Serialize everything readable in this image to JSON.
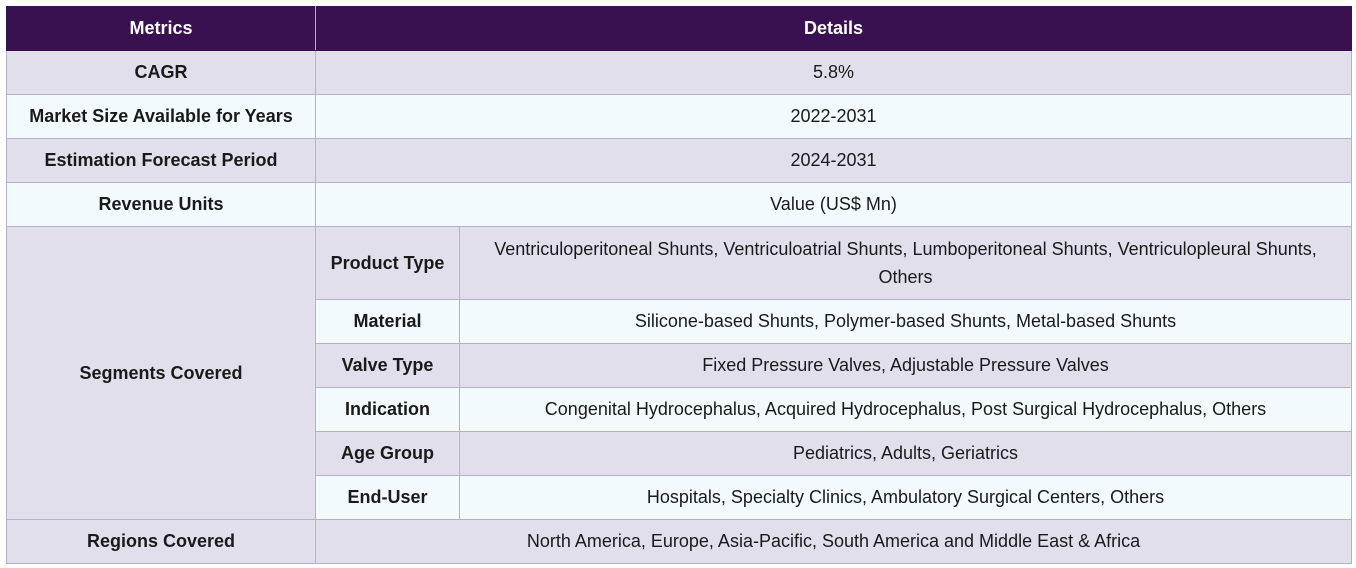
{
  "table": {
    "headers": {
      "metrics": "Metrics",
      "details": "Details"
    },
    "rows": [
      {
        "metric": "CAGR",
        "value": "5.8%"
      },
      {
        "metric": "Market Size Available for Years",
        "value": "2022-2031"
      },
      {
        "metric": "Estimation Forecast Period",
        "value": "2024-2031"
      },
      {
        "metric": "Revenue Units",
        "value": "Value (US$ Mn)"
      }
    ],
    "segments": {
      "label": "Segments Covered",
      "items": [
        {
          "name": "Product Type",
          "value": "Ventriculoperitoneal Shunts, Ventriculoatrial Shunts, Lumboperitoneal Shunts, Ventriculopleural Shunts, Others"
        },
        {
          "name": "Material",
          "value": "Silicone-based Shunts, Polymer-based Shunts, Metal-based Shunts"
        },
        {
          "name": "Valve Type",
          "value": "Fixed Pressure Valves, Adjustable Pressure Valves"
        },
        {
          "name": "Indication",
          "value": "Congenital Hydrocephalus, Acquired Hydrocephalus, Post Surgical Hydrocephalus, Others"
        },
        {
          "name": "Age Group",
          "value": "Pediatrics, Adults, Geriatrics"
        },
        {
          "name": "End-User",
          "value": "Hospitals, Specialty Clinics, Ambulatory Surgical Centers, Others"
        }
      ]
    },
    "regions": {
      "label": "Regions Covered",
      "value": "North America, Europe, Asia-Pacific, South America and Middle East & Africa"
    }
  }
}
